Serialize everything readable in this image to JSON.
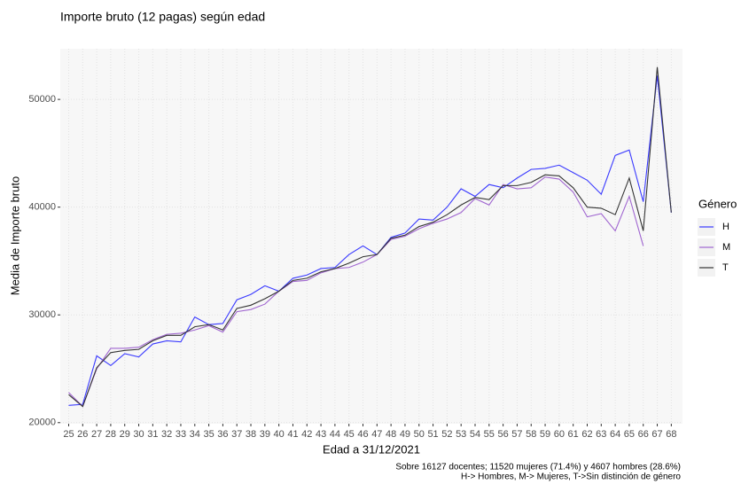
{
  "chart_data": {
    "type": "line",
    "title": "Importe bruto (12 pagas) según edad",
    "x_label": "Edad a 31/12/2021",
    "y_label": "Media de Importe bruto",
    "legend_title": "Género",
    "caption": [
      "Sobre 16127 docentes; 11520 mujeres (71.4%) y 4607 hombres (28.6%)",
      "H-> Hombres, M-> Mujeres, T->Sin distinción de género"
    ],
    "x": [
      25,
      26,
      27,
      28,
      29,
      30,
      31,
      32,
      33,
      34,
      35,
      36,
      37,
      38,
      39,
      40,
      41,
      42,
      43,
      44,
      45,
      46,
      47,
      48,
      49,
      50,
      51,
      52,
      53,
      54,
      55,
      56,
      57,
      58,
      59,
      60,
      61,
      62,
      63,
      64,
      65,
      66,
      67,
      68
    ],
    "xlim": [
      24.4,
      68.8
    ],
    "xticks": [
      25,
      26,
      27,
      28,
      29,
      30,
      31,
      32,
      33,
      34,
      35,
      36,
      37,
      38,
      39,
      40,
      41,
      42,
      43,
      44,
      45,
      46,
      47,
      48,
      49,
      50,
      51,
      52,
      53,
      54,
      55,
      56,
      57,
      58,
      59,
      60,
      61,
      62,
      63,
      64,
      65,
      66,
      67,
      68
    ],
    "ylim": [
      19900,
      54700
    ],
    "yticks": [
      20000,
      30000,
      40000,
      50000
    ],
    "grid": true,
    "series": [
      {
        "name": "H",
        "color": "#3a3aff",
        "values": [
          21600,
          21700,
          26200,
          25300,
          26400,
          26100,
          27300,
          27600,
          27500,
          29800,
          29100,
          29200,
          31400,
          31900,
          32700,
          32200,
          33400,
          33700,
          34300,
          34400,
          35600,
          36400,
          35600,
          37200,
          37600,
          38900,
          38800,
          40000,
          41700,
          41000,
          42100,
          41800,
          42700,
          43500,
          43600,
          43900,
          43200,
          42500,
          41200,
          44800,
          45300,
          40500,
          52200,
          39500
        ]
      },
      {
        "name": "M",
        "color": "#a066d0",
        "values": [
          22800,
          21500,
          25000,
          26900,
          26900,
          27000,
          27700,
          28200,
          28300,
          28600,
          29000,
          28400,
          30300,
          30500,
          31000,
          32200,
          33100,
          33200,
          33900,
          34300,
          34400,
          34900,
          35600,
          37000,
          37300,
          38000,
          38500,
          38900,
          39500,
          40800,
          40200,
          42100,
          41700,
          41800,
          42800,
          42600,
          41400,
          39100,
          39400,
          37800,
          41000,
          36400,
          null,
          null
        ]
      },
      {
        "name": "T",
        "color": "#333333",
        "values": [
          22600,
          21500,
          25100,
          26500,
          26700,
          26800,
          27600,
          28100,
          28100,
          28900,
          29100,
          28600,
          30600,
          30900,
          31500,
          32200,
          33200,
          33400,
          34000,
          34300,
          34800,
          35400,
          35600,
          37100,
          37400,
          38200,
          38600,
          39300,
          40200,
          40900,
          40700,
          42000,
          42000,
          42300,
          43000,
          42900,
          41800,
          40000,
          39900,
          39300,
          42700,
          37800,
          53000,
          39500
        ]
      }
    ]
  }
}
